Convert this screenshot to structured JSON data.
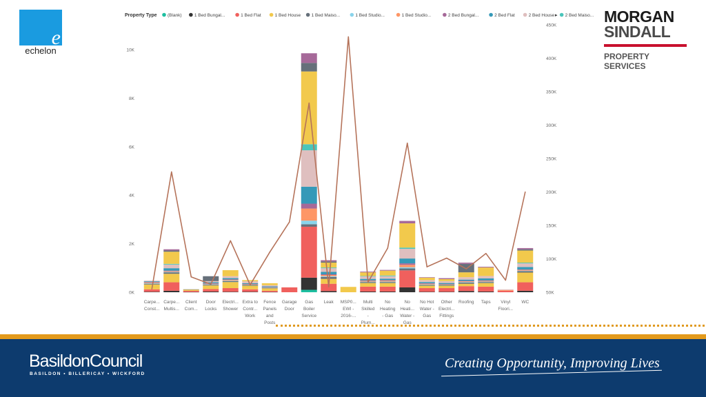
{
  "logos": {
    "echelon": {
      "mark": "e",
      "text": "echelon"
    },
    "morgan_sindall": {
      "line1": "MORGAN",
      "line2": "SINDALL",
      "line3": "PROPERTY SERVICES"
    }
  },
  "footer": {
    "council_name": "BasildonCouncil",
    "council_towns": "BASILDON • BILLERICAY • WICKFORD",
    "tagline": "Creating Opportunity, Improving Lives"
  },
  "colors": {
    "orange": "#e39a1c",
    "navy": "#0d3b6e",
    "line_series": "#b5735a",
    "axis_text": "#666666"
  },
  "chart_data": {
    "type": "bar",
    "stacked": true,
    "legend": {
      "title": "Property Type",
      "placement": "top",
      "items": [
        {
          "name": "(Blank)",
          "color": "#1dbfa0"
        },
        {
          "name": "1 Bed Bungal...",
          "color": "#333333"
        },
        {
          "name": "1 Bed Flat",
          "color": "#f0605d"
        },
        {
          "name": "1 Bed House",
          "color": "#f2c94c"
        },
        {
          "name": "1 Bed Maiso...",
          "color": "#66707a"
        },
        {
          "name": "1 Bed Studio...",
          "color": "#8ad4eb"
        },
        {
          "name": "1 Bed Studio...",
          "color": "#fe9666"
        },
        {
          "name": "2 Bed Bungal...",
          "color": "#a66999"
        },
        {
          "name": "2 Bed Flat",
          "color": "#3599b8"
        },
        {
          "name": "2 Bed House",
          "color": "#dfbfbf"
        },
        {
          "name": "2 Bed Maiso...",
          "color": "#4ac5bb"
        }
      ],
      "more_arrow": "▸"
    },
    "categories": [
      [
        "Carpe...",
        "Const..."
      ],
      [
        "Carpe...",
        "Multis..."
      ],
      [
        "Client",
        "Com..."
      ],
      [
        "Door",
        "Locks"
      ],
      [
        "Electri...",
        "Shower"
      ],
      [
        "Extra to",
        "Contr...",
        "Work"
      ],
      [
        "Fence",
        "Panels",
        "and",
        "Posts"
      ],
      [
        "Garage",
        "Door"
      ],
      [
        "Gas",
        "Boiler",
        "Service"
      ],
      [
        "Leak"
      ],
      [
        "MSP0...",
        "EWI -",
        "2016-..."
      ],
      [
        "Multi",
        "Skilled",
        "-",
        "Plum..."
      ],
      [
        "No",
        "Heating",
        "- Gas"
      ],
      [
        "No",
        "Heati...",
        "Water -",
        "Gas"
      ],
      [
        "No Hot",
        "Water -",
        "Gas"
      ],
      [
        "Other",
        "Electri...",
        "Fittings"
      ],
      [
        "Roofing"
      ],
      [
        "Taps"
      ],
      [
        "Vinyl",
        "Floori..."
      ],
      [
        "WC"
      ]
    ],
    "stack_colors": [
      "#1dbfa0",
      "#333333",
      "#f0605d",
      "#f2c94c",
      "#66707a",
      "#8ad4eb",
      "#fe9666",
      "#a66999",
      "#3599b8",
      "#dfbfbf",
      "#4ac5bb",
      "#f2c94c",
      "#66707a",
      "#a66999"
    ],
    "stacks": [
      [
        0,
        20,
        100,
        200,
        30,
        20,
        30,
        20,
        30,
        30,
        0,
        0,
        0,
        0
      ],
      [
        0,
        60,
        350,
        350,
        60,
        20,
        30,
        20,
        100,
        150,
        30,
        500,
        50,
        50
      ],
      [
        0,
        10,
        50,
        50,
        10,
        0,
        0,
        0,
        0,
        0,
        0,
        0,
        0,
        0
      ],
      [
        0,
        30,
        100,
        150,
        30,
        20,
        20,
        20,
        40,
        50,
        0,
        0,
        200,
        0
      ],
      [
        0,
        20,
        150,
        250,
        40,
        20,
        30,
        20,
        50,
        80,
        0,
        250,
        0,
        0
      ],
      [
        0,
        20,
        100,
        150,
        30,
        10,
        20,
        10,
        30,
        80,
        0,
        50,
        0,
        0
      ],
      [
        0,
        10,
        50,
        100,
        20,
        10,
        10,
        10,
        30,
        50,
        0,
        80,
        0,
        0
      ],
      [
        0,
        0,
        200,
        0,
        0,
        0,
        0,
        0,
        0,
        0,
        0,
        0,
        0,
        0
      ],
      [
        100,
        500,
        2100,
        0,
        100,
        150,
        500,
        200,
        700,
        1500,
        250,
        3000,
        350,
        400
      ],
      [
        0,
        50,
        300,
        200,
        80,
        30,
        50,
        30,
        100,
        150,
        30,
        200,
        50,
        50
      ],
      [
        0,
        0,
        0,
        220,
        0,
        0,
        0,
        0,
        0,
        0,
        0,
        0,
        0,
        0
      ],
      [
        0,
        30,
        200,
        150,
        40,
        20,
        30,
        20,
        60,
        100,
        20,
        150,
        0,
        30
      ],
      [
        0,
        30,
        200,
        150,
        40,
        20,
        40,
        20,
        60,
        100,
        30,
        200,
        0,
        30
      ],
      [
        0,
        200,
        700,
        0,
        80,
        50,
        100,
        60,
        200,
        400,
        50,
        1000,
        0,
        100
      ],
      [
        0,
        20,
        150,
        100,
        30,
        20,
        30,
        20,
        50,
        80,
        0,
        100,
        0,
        20
      ],
      [
        0,
        20,
        150,
        100,
        30,
        10,
        20,
        10,
        40,
        80,
        0,
        80,
        0,
        40
      ],
      [
        0,
        50,
        200,
        100,
        50,
        20,
        30,
        20,
        50,
        100,
        0,
        200,
        350,
        50
      ],
      [
        0,
        30,
        200,
        150,
        40,
        20,
        30,
        20,
        80,
        100,
        0,
        350,
        0,
        30
      ],
      [
        0,
        0,
        60,
        0,
        0,
        0,
        30,
        0,
        0,
        30,
        0,
        0,
        0,
        0
      ],
      [
        0,
        60,
        350,
        400,
        60,
        20,
        30,
        20,
        100,
        150,
        30,
        500,
        50,
        50
      ]
    ],
    "line": {
      "values": [
        55000,
        230000,
        73000,
        62000,
        127000,
        61000,
        110000,
        155000,
        333000,
        58000,
        432000,
        65000,
        116000,
        273000,
        88000,
        101000,
        85000,
        108000,
        68000,
        200000
      ]
    },
    "y_left": {
      "ticks": [
        "0K",
        "2K",
        "4K",
        "6K",
        "8K",
        "10K"
      ],
      "tick_values": [
        0,
        2000,
        4000,
        6000,
        8000,
        10000
      ],
      "ylim": [
        0,
        10500
      ]
    },
    "y_right": {
      "ticks": [
        "50K",
        "100K",
        "150K",
        "200K",
        "250K",
        "300K",
        "350K",
        "400K",
        "450K"
      ],
      "tick_values": [
        50000,
        100000,
        150000,
        200000,
        250000,
        300000,
        350000,
        400000,
        450000
      ],
      "ylim": [
        50000,
        450000
      ]
    }
  }
}
